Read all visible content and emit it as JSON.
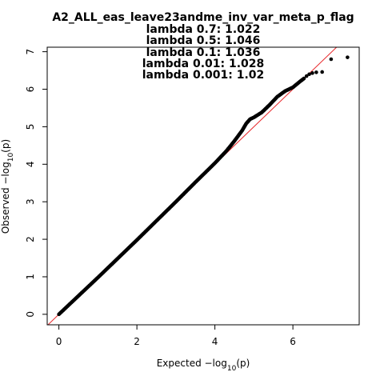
{
  "chart_data": {
    "type": "scatter",
    "title": "A2_ALL_eas_leave23andme_inv_var_meta_p_flag",
    "subtitles": [
      "lambda 0.7: 1.022",
      "lambda 0.5: 1.046",
      "lambda 0.1: 1.036",
      "lambda 0.01: 1.028",
      "lambda 0.001: 1.02"
    ],
    "xlabel": {
      "main": "Expected  −log",
      "sub": "10",
      "tail": "(p)"
    },
    "ylabel": {
      "main": "Observed  −log",
      "sub": "10",
      "tail": "(p)"
    },
    "xlim": [
      -0.3,
      7.7
    ],
    "ylim": [
      -0.28,
      7.12
    ],
    "xticks": [
      "0",
      "2",
      "4",
      "6"
    ],
    "yticks": [
      "0",
      "1",
      "2",
      "3",
      "4",
      "5",
      "6",
      "7"
    ],
    "grid": false,
    "reference_line": {
      "slope": 1,
      "intercept": 0,
      "color": "#e8282b"
    },
    "point_color": "#000000",
    "curve": [
      [
        0,
        0
      ],
      [
        0.5,
        0.49
      ],
      [
        1,
        0.98
      ],
      [
        1.5,
        1.48
      ],
      [
        2,
        1.98
      ],
      [
        2.5,
        2.49
      ],
      [
        3,
        3.0
      ],
      [
        3.5,
        3.52
      ],
      [
        4,
        4.03
      ],
      [
        4.3,
        4.36
      ],
      [
        4.5,
        4.62
      ],
      [
        4.7,
        4.9
      ],
      [
        4.8,
        5.08
      ],
      [
        4.9,
        5.2
      ],
      [
        5.0,
        5.25
      ],
      [
        5.2,
        5.38
      ],
      [
        5.4,
        5.58
      ],
      [
        5.6,
        5.8
      ],
      [
        5.8,
        5.95
      ],
      [
        6.0,
        6.05
      ],
      [
        6.2,
        6.22
      ],
      [
        6.3,
        6.3
      ]
    ],
    "tail_points": [
      {
        "x": 6.35,
        "y": 6.35
      },
      {
        "x": 6.42,
        "y": 6.4
      },
      {
        "x": 6.5,
        "y": 6.43
      },
      {
        "x": 6.6,
        "y": 6.45
      },
      {
        "x": 6.75,
        "y": 6.46
      },
      {
        "x": 6.98,
        "y": 6.8
      },
      {
        "x": 7.4,
        "y": 6.85
      }
    ]
  }
}
